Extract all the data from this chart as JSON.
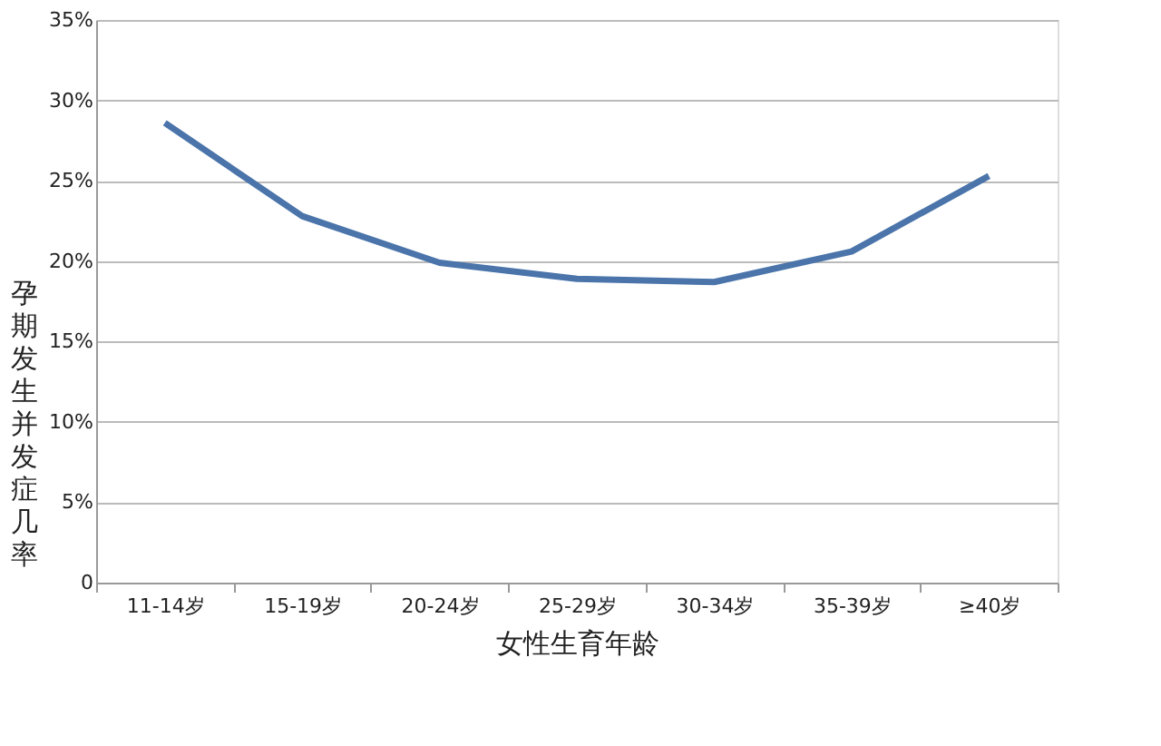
{
  "chart_data": {
    "type": "line",
    "xlabel": "女性生育年龄",
    "ylabel": "孕期发生并发症几率",
    "categories": [
      "11-14岁",
      "15-19岁",
      "20-24岁",
      "25-29岁",
      "30-34岁",
      "35-39岁",
      "≥40岁"
    ],
    "series": [
      {
        "color": "#4a74aa",
        "values": [
          28.6,
          22.8,
          19.9,
          18.9,
          18.7,
          20.6,
          25.3
        ]
      }
    ],
    "ylim": [
      0,
      35
    ],
    "yticks": [
      {
        "value": 0,
        "label": "0"
      },
      {
        "value": 5,
        "label": "5%"
      },
      {
        "value": 10,
        "label": "10%"
      },
      {
        "value": 15,
        "label": "15%"
      },
      {
        "value": 20,
        "label": "20%"
      },
      {
        "value": 25,
        "label": "25%"
      },
      {
        "value": 30,
        "label": "30%"
      },
      {
        "value": 35,
        "label": "35%"
      }
    ],
    "grid": "y",
    "marker": "none",
    "line_style": "solid",
    "legend": false
  }
}
